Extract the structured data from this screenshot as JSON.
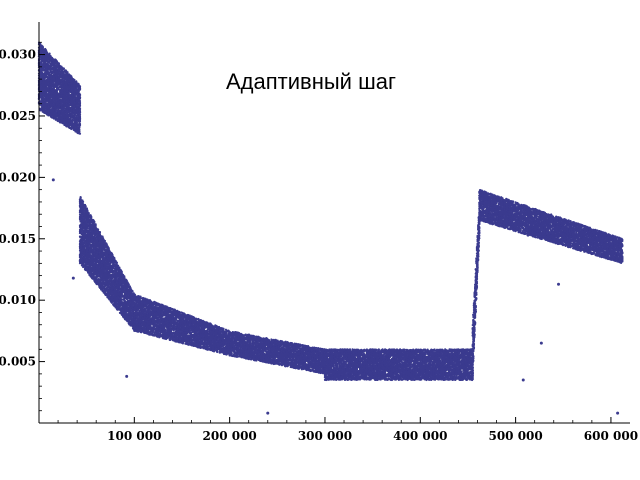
{
  "chart_data": {
    "type": "scatter",
    "title": "Адаптивный шаг",
    "xlabel": "",
    "ylabel": "",
    "xlim": [
      0,
      620000
    ],
    "ylim": [
      0,
      0.032
    ],
    "grid": false,
    "marker_color": "#3b3b8f",
    "x_ticks": [
      {
        "value": 100000,
        "label": "100 000"
      },
      {
        "value": 200000,
        "label": "200 000"
      },
      {
        "value": 300000,
        "label": "300 000"
      },
      {
        "value": 400000,
        "label": "400 000"
      },
      {
        "value": 500000,
        "label": "500 000"
      },
      {
        "value": 600000,
        "label": "600 000"
      }
    ],
    "y_ticks": [
      {
        "value": 0.005,
        "label": "0.005"
      },
      {
        "value": 0.01,
        "label": "0.010"
      },
      {
        "value": 0.015,
        "label": "0.015"
      },
      {
        "value": 0.02,
        "label": "0.020"
      },
      {
        "value": 0.025,
        "label": "0.025"
      },
      {
        "value": 0.03,
        "label": "0.030"
      }
    ],
    "series": [
      {
        "bands": [
          {
            "x_start": 0,
            "x_end": 43000,
            "y_start_low": 0.0255,
            "y_start_high": 0.031,
            "y_end_low": 0.0235,
            "y_end_high": 0.0275
          },
          {
            "x_start": 43000,
            "x_end": 100000,
            "y_start_low": 0.013,
            "y_start_high": 0.0185,
            "y_end_low": 0.0075,
            "y_end_high": 0.0105
          },
          {
            "x_start": 100000,
            "x_end": 200000,
            "y_start_low": 0.0075,
            "y_start_high": 0.0105,
            "y_end_low": 0.0055,
            "y_end_high": 0.0075
          },
          {
            "x_start": 200000,
            "x_end": 300000,
            "y_start_low": 0.0055,
            "y_start_high": 0.0075,
            "y_end_low": 0.004,
            "y_end_high": 0.006
          },
          {
            "x_start": 300000,
            "x_end": 455000,
            "y_start_low": 0.0035,
            "y_start_high": 0.006,
            "y_end_low": 0.0035,
            "y_end_high": 0.006
          },
          {
            "x_start": 455000,
            "x_end": 462000,
            "y_start_low": 0.004,
            "y_start_high": 0.008,
            "y_end_low": 0.015,
            "y_end_high": 0.018
          },
          {
            "x_start": 462000,
            "x_end": 612000,
            "y_start_low": 0.0165,
            "y_start_high": 0.019,
            "y_end_low": 0.013,
            "y_end_high": 0.015
          }
        ],
        "outliers": [
          {
            "x": 15000,
            "y": 0.0198
          },
          {
            "x": 36000,
            "y": 0.0118
          },
          {
            "x": 92000,
            "y": 0.0038
          },
          {
            "x": 240000,
            "y": 0.0008
          },
          {
            "x": 508000,
            "y": 0.0035
          },
          {
            "x": 513000,
            "y": 0.0153
          },
          {
            "x": 527000,
            "y": 0.0065
          },
          {
            "x": 545000,
            "y": 0.0113
          },
          {
            "x": 607000,
            "y": 0.0008
          }
        ]
      }
    ]
  }
}
